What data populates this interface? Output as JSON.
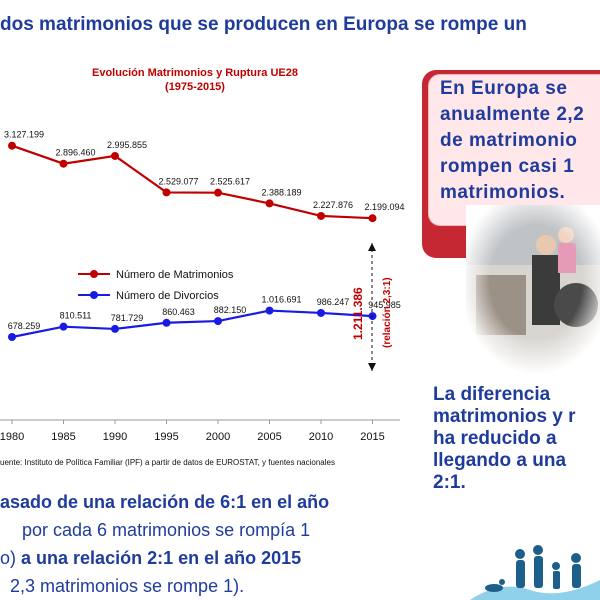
{
  "headline": "dos matrimonios que se producen en Europa se rompe un",
  "chart_data": {
    "type": "line",
    "title": "Evolución Matrimonios y Ruptura UE28",
    "subtitle": "(1975-2015)",
    "categories": [
      "1980",
      "1985",
      "1990",
      "1995",
      "2000",
      "2005",
      "2010",
      "2015"
    ],
    "series": [
      {
        "name": "Número de Matrimonios",
        "color": "#c00000",
        "values": [
          3127199,
          2896460,
          2995855,
          2529077,
          2525617,
          2388189,
          2227876,
          2199094
        ],
        "labels": [
          "3.127.199",
          "2.896.460",
          "2.995.855",
          "2.529.077",
          "2.525.617",
          "2.388.189",
          "2.227.876",
          "2.199.094"
        ]
      },
      {
        "name": "Número de Divorcios",
        "color": "#1a1ae6",
        "values": [
          678259,
          810511,
          781729,
          860463,
          882150,
          1016691,
          986247,
          945985
        ],
        "labels": [
          "678.259",
          "810.511",
          "781.729",
          "860.463",
          "882.150",
          "1.016.691",
          "986.247",
          "945.985"
        ]
      }
    ],
    "annotation": {
      "value": "1.211.386",
      "note": "(relación 2,3:1)"
    }
  },
  "source": "uente: Instituto de Política Familiar (IPF) a partir de datos de EUROSTAT, y fuentes nacionales",
  "callout": {
    "lines": [
      "En Europa se",
      "anualmente 2,2",
      "de matrimonio",
      "rompen casi 1",
      "matrimonios."
    ]
  },
  "diff_text": {
    "lines": [
      "La diferencia",
      "matrimonios y r",
      "ha reducido a",
      "llegando a una",
      "2:1."
    ]
  },
  "bottom_text": {
    "line1": "asado de una relación de 6:1 en el año",
    "line2": "por cada 6 matrimonios se rompía 1",
    "line3_a": "o)",
    "line3_b": "a una relación 2:1 en el año 2015",
    "line4": "2,3 matrimonios se rompe 1)."
  },
  "colors": {
    "accent": "#1f3b9c",
    "marriages": "#c00000",
    "divorces": "#1a1ae6",
    "callout": "#c62833"
  }
}
